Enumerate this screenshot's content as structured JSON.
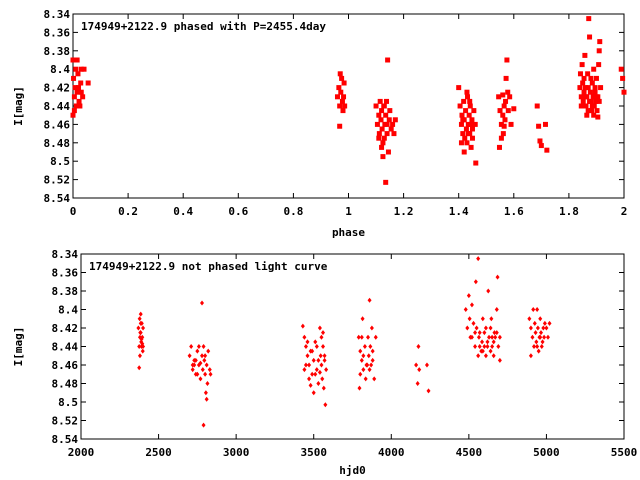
{
  "chart_data": [
    {
      "type": "scatter",
      "title": "174949+2122.9 phased with P=2455.4day",
      "xlabel": "phase",
      "ylabel": "I[mag]",
      "xlim": [
        0,
        2
      ],
      "ylim": [
        8.54,
        8.34
      ],
      "y_inverted": true,
      "xticks": [
        "0",
        "0.2",
        "0.4",
        "0.6",
        "0.8",
        "1",
        "1.2",
        "1.4",
        "1.6",
        "1.8",
        "2"
      ],
      "yticks": [
        "8.34",
        "8.36",
        "8.38",
        "8.4",
        "8.42",
        "8.44",
        "8.46",
        "8.48",
        "8.5",
        "8.52",
        "8.54"
      ],
      "marker_color": "#ff0000",
      "marker": "filled-square",
      "points": [
        [
          0.0,
          8.39
        ],
        [
          0.002,
          8.41
        ],
        [
          0.005,
          8.43
        ],
        [
          0.008,
          8.42
        ],
        [
          0.01,
          8.4
        ],
        [
          0.012,
          8.44
        ],
        [
          0.015,
          8.425
        ],
        [
          0.018,
          8.405
        ],
        [
          0.02,
          8.42
        ],
        [
          0.022,
          8.435
        ],
        [
          0.025,
          8.44
        ],
        [
          0.028,
          8.415
        ],
        [
          0.03,
          8.4
        ],
        [
          0.035,
          8.43
        ],
        [
          0.005,
          8.445
        ],
        [
          0.0,
          8.45
        ],
        [
          0.04,
          8.4
        ],
        [
          0.055,
          8.415
        ],
        [
          0.015,
          8.39
        ],
        [
          0.03,
          8.425
        ],
        [
          0.965,
          8.42
        ],
        [
          0.968,
          8.44
        ],
        [
          0.97,
          8.405
        ],
        [
          0.972,
          8.425
        ],
        [
          0.975,
          8.41
        ],
        [
          0.978,
          8.435
        ],
        [
          0.98,
          8.445
        ],
        [
          0.982,
          8.43
        ],
        [
          0.984,
          8.415
        ],
        [
          0.986,
          8.44
        ],
        [
          0.968,
          8.462
        ],
        [
          0.96,
          8.43
        ],
        [
          1.1,
          8.44
        ],
        [
          1.105,
          8.46
        ],
        [
          1.11,
          8.45
        ],
        [
          1.112,
          8.47
        ],
        [
          1.115,
          8.435
        ],
        [
          1.118,
          8.455
        ],
        [
          1.12,
          8.445
        ],
        [
          1.122,
          8.465
        ],
        [
          1.125,
          8.48
        ],
        [
          1.128,
          8.44
        ],
        [
          1.13,
          8.475
        ],
        [
          1.132,
          8.46
        ],
        [
          1.135,
          8.45
        ],
        [
          1.138,
          8.435
        ],
        [
          1.14,
          8.47
        ],
        [
          1.142,
          8.39
        ],
        [
          1.145,
          8.49
        ],
        [
          1.148,
          8.455
        ],
        [
          1.15,
          8.445
        ],
        [
          1.155,
          8.465
        ],
        [
          1.16,
          8.46
        ],
        [
          1.165,
          8.47
        ],
        [
          1.12,
          8.485
        ],
        [
          1.125,
          8.495
        ],
        [
          1.135,
          8.523
        ],
        [
          1.11,
          8.475
        ],
        [
          1.13,
          8.44
        ],
        [
          1.14,
          8.46
        ],
        [
          1.17,
          8.455
        ],
        [
          1.4,
          8.42
        ],
        [
          1.405,
          8.44
        ],
        [
          1.41,
          8.46
        ],
        [
          1.412,
          8.45
        ],
        [
          1.415,
          8.47
        ],
        [
          1.418,
          8.435
        ],
        [
          1.42,
          8.455
        ],
        [
          1.422,
          8.475
        ],
        [
          1.425,
          8.445
        ],
        [
          1.428,
          8.465
        ],
        [
          1.43,
          8.48
        ],
        [
          1.432,
          8.43
        ],
        [
          1.435,
          8.46
        ],
        [
          1.438,
          8.45
        ],
        [
          1.44,
          8.47
        ],
        [
          1.442,
          8.44
        ],
        [
          1.445,
          8.485
        ],
        [
          1.448,
          8.455
        ],
        [
          1.45,
          8.465
        ],
        [
          1.455,
          8.445
        ],
        [
          1.46,
          8.46
        ],
        [
          1.462,
          8.502
        ],
        [
          1.41,
          8.48
        ],
        [
          1.42,
          8.49
        ],
        [
          1.43,
          8.425
        ],
        [
          1.44,
          8.435
        ],
        [
          1.45,
          8.475
        ],
        [
          1.415,
          8.455
        ],
        [
          1.435,
          8.47
        ],
        [
          1.445,
          8.46
        ],
        [
          1.545,
          8.43
        ],
        [
          1.55,
          8.445
        ],
        [
          1.555,
          8.46
        ],
        [
          1.56,
          8.45
        ],
        [
          1.562,
          8.47
        ],
        [
          1.565,
          8.44
        ],
        [
          1.568,
          8.455
        ],
        [
          1.57,
          8.435
        ],
        [
          1.572,
          8.41
        ],
        [
          1.575,
          8.39
        ],
        [
          1.578,
          8.425
        ],
        [
          1.58,
          8.445
        ],
        [
          1.585,
          8.43
        ],
        [
          1.59,
          8.46
        ],
        [
          1.555,
          8.475
        ],
        [
          1.548,
          8.485
        ],
        [
          1.565,
          8.462
        ],
        [
          1.6,
          8.443
        ],
        [
          1.56,
          8.428
        ],
        [
          1.685,
          8.44
        ],
        [
          1.69,
          8.462
        ],
        [
          1.695,
          8.478
        ],
        [
          1.7,
          8.483
        ],
        [
          1.715,
          8.46
        ],
        [
          1.72,
          8.488
        ],
        [
          1.84,
          8.42
        ],
        [
          1.842,
          8.405
        ],
        [
          1.845,
          8.43
        ],
        [
          1.848,
          8.395
        ],
        [
          1.85,
          8.415
        ],
        [
          1.852,
          8.435
        ],
        [
          1.855,
          8.41
        ],
        [
          1.858,
          8.385
        ],
        [
          1.86,
          8.42
        ],
        [
          1.862,
          8.44
        ],
        [
          1.865,
          8.43
        ],
        [
          1.868,
          8.405
        ],
        [
          1.87,
          8.42
        ],
        [
          1.872,
          8.345
        ],
        [
          1.875,
          8.365
        ],
        [
          1.878,
          8.425
        ],
        [
          1.88,
          8.435
        ],
        [
          1.882,
          8.445
        ],
        [
          1.885,
          8.415
        ],
        [
          1.888,
          8.43
        ],
        [
          1.89,
          8.4
        ],
        [
          1.892,
          8.44
        ],
        [
          1.895,
          8.42
        ],
        [
          1.898,
          8.435
        ],
        [
          1.9,
          8.41
        ],
        [
          1.902,
          8.445
        ],
        [
          1.905,
          8.43
        ],
        [
          1.908,
          8.395
        ],
        [
          1.91,
          8.38
        ],
        [
          1.912,
          8.37
        ],
        [
          1.915,
          8.42
        ],
        [
          1.845,
          8.44
        ],
        [
          1.855,
          8.425
        ],
        [
          1.865,
          8.45
        ],
        [
          1.875,
          8.435
        ],
        [
          1.885,
          8.44
        ],
        [
          1.895,
          8.425
        ],
        [
          1.905,
          8.452
        ],
        [
          1.86,
          8.43
        ],
        [
          1.87,
          8.445
        ],
        [
          1.88,
          8.41
        ],
        [
          1.9,
          8.43
        ],
        [
          1.91,
          8.435
        ],
        [
          1.89,
          8.45
        ],
        [
          1.99,
          8.4
        ],
        [
          1.995,
          8.41
        ],
        [
          2.0,
          8.425
        ]
      ]
    },
    {
      "type": "scatter",
      "title": "174949+2122.9 not phased light curve",
      "xlabel": "hjd0",
      "ylabel": "I[mag]",
      "xlim": [
        2000,
        5500
      ],
      "ylim": [
        8.54,
        8.34
      ],
      "y_inverted": true,
      "xticks": [
        "2000",
        "2500",
        "3000",
        "3500",
        "4000",
        "4500",
        "5000",
        "5500"
      ],
      "yticks": [
        "8.34",
        "8.36",
        "8.38",
        "8.4",
        "8.42",
        "8.44",
        "8.46",
        "8.48",
        "8.5",
        "8.52",
        "8.54"
      ],
      "marker_color": "#ff0000",
      "marker": "filled-diamond",
      "points": [
        [
          2370,
          8.42
        ],
        [
          2375,
          8.44
        ],
        [
          2378,
          8.41
        ],
        [
          2380,
          8.43
        ],
        [
          2382,
          8.425
        ],
        [
          2385,
          8.405
        ],
        [
          2388,
          8.435
        ],
        [
          2390,
          8.44
        ],
        [
          2392,
          8.415
        ],
        [
          2395,
          8.43
        ],
        [
          2398,
          8.445
        ],
        [
          2400,
          8.42
        ],
        [
          2380,
          8.45
        ],
        [
          2375,
          8.463
        ],
        [
          2395,
          8.437
        ],
        [
          2385,
          8.425
        ],
        [
          2390,
          8.432
        ],
        [
          2400,
          8.44
        ],
        [
          2385,
          8.415
        ],
        [
          2700,
          8.45
        ],
        [
          2710,
          8.44
        ],
        [
          2720,
          8.46
        ],
        [
          2730,
          8.455
        ],
        [
          2740,
          8.47
        ],
        [
          2750,
          8.445
        ],
        [
          2760,
          8.46
        ],
        [
          2770,
          8.475
        ],
        [
          2780,
          8.45
        ],
        [
          2785,
          8.465
        ],
        [
          2790,
          8.44
        ],
        [
          2795,
          8.455
        ],
        [
          2800,
          8.47
        ],
        [
          2805,
          8.49
        ],
        [
          2810,
          8.46
        ],
        [
          2815,
          8.48
        ],
        [
          2820,
          8.445
        ],
        [
          2830,
          8.465
        ],
        [
          2835,
          8.47
        ],
        [
          2780,
          8.393
        ],
        [
          2790,
          8.525
        ],
        [
          2720,
          8.465
        ],
        [
          2740,
          8.455
        ],
        [
          2760,
          8.44
        ],
        [
          2800,
          8.45
        ],
        [
          2770,
          8.458
        ],
        [
          2810,
          8.497
        ],
        [
          2750,
          8.47
        ],
        [
          2730,
          8.46
        ],
        [
          3430,
          8.418
        ],
        [
          3440,
          8.43
        ],
        [
          3450,
          8.44
        ],
        [
          3460,
          8.45
        ],
        [
          3470,
          8.46
        ],
        [
          3480,
          8.445
        ],
        [
          3490,
          8.47
        ],
        [
          3500,
          8.455
        ],
        [
          3510,
          8.435
        ],
        [
          3520,
          8.465
        ],
        [
          3530,
          8.48
        ],
        [
          3540,
          8.42
        ],
        [
          3545,
          8.45
        ],
        [
          3550,
          8.46
        ],
        [
          3555,
          8.475
        ],
        [
          3560,
          8.44
        ],
        [
          3565,
          8.485
        ],
        [
          3570,
          8.455
        ],
        [
          3575,
          8.503
        ],
        [
          3580,
          8.465
        ],
        [
          3450,
          8.46
        ],
        [
          3470,
          8.475
        ],
        [
          3490,
          8.445
        ],
        [
          3510,
          8.47
        ],
        [
          3530,
          8.455
        ],
        [
          3550,
          8.43
        ],
        [
          3440,
          8.465
        ],
        [
          3480,
          8.482
        ],
        [
          3520,
          8.44
        ],
        [
          3560,
          8.425
        ],
        [
          3500,
          8.49
        ],
        [
          3460,
          8.435
        ],
        [
          3540,
          8.468
        ],
        [
          3570,
          8.45
        ],
        [
          3790,
          8.43
        ],
        [
          3800,
          8.445
        ],
        [
          3810,
          8.455
        ],
        [
          3815,
          8.41
        ],
        [
          3820,
          8.465
        ],
        [
          3830,
          8.44
        ],
        [
          3835,
          8.475
        ],
        [
          3840,
          8.46
        ],
        [
          3850,
          8.43
        ],
        [
          3855,
          8.45
        ],
        [
          3860,
          8.39
        ],
        [
          3865,
          8.44
        ],
        [
          3870,
          8.46
        ],
        [
          3880,
          8.455
        ],
        [
          3890,
          8.475
        ],
        [
          3900,
          8.43
        ],
        [
          3800,
          8.47
        ],
        [
          3795,
          8.485
        ],
        [
          3820,
          8.45
        ],
        [
          3845,
          8.46
        ],
        [
          3875,
          8.42
        ],
        [
          3860,
          8.465
        ],
        [
          3880,
          8.445
        ],
        [
          3810,
          8.43
        ],
        [
          4160,
          8.46
        ],
        [
          4170,
          8.48
        ],
        [
          4175,
          8.44
        ],
        [
          4180,
          8.465
        ],
        [
          4230,
          8.46
        ],
        [
          4240,
          8.488
        ],
        [
          4480,
          8.4
        ],
        [
          4490,
          8.42
        ],
        [
          4500,
          8.385
        ],
        [
          4505,
          8.41
        ],
        [
          4510,
          8.43
        ],
        [
          4520,
          8.395
        ],
        [
          4530,
          8.415
        ],
        [
          4540,
          8.44
        ],
        [
          4545,
          8.37
        ],
        [
          4550,
          8.42
        ],
        [
          4560,
          8.345
        ],
        [
          4565,
          8.43
        ],
        [
          4570,
          8.425
        ],
        [
          4580,
          8.445
        ],
        [
          4585,
          8.435
        ],
        [
          4590,
          8.41
        ],
        [
          4600,
          8.44
        ],
        [
          4610,
          8.42
        ],
        [
          4620,
          8.435
        ],
        [
          4625,
          8.38
        ],
        [
          4630,
          8.43
        ],
        [
          4640,
          8.445
        ],
        [
          4645,
          8.41
        ],
        [
          4650,
          8.44
        ],
        [
          4660,
          8.45
        ],
        [
          4665,
          8.425
        ],
        [
          4670,
          8.43
        ],
        [
          4680,
          8.4
        ],
        [
          4685,
          8.365
        ],
        [
          4690,
          8.44
        ],
        [
          4700,
          8.455
        ],
        [
          4520,
          8.43
        ],
        [
          4540,
          8.425
        ],
        [
          4560,
          8.45
        ],
        [
          4600,
          8.425
        ],
        [
          4620,
          8.44
        ],
        [
          4640,
          8.42
        ],
        [
          4660,
          8.435
        ],
        [
          4680,
          8.425
        ],
        [
          4700,
          8.43
        ],
        [
          4570,
          8.44
        ],
        [
          4590,
          8.445
        ],
        [
          4610,
          8.45
        ],
        [
          4650,
          8.43
        ],
        [
          4890,
          8.41
        ],
        [
          4900,
          8.42
        ],
        [
          4910,
          8.43
        ],
        [
          4915,
          8.4
        ],
        [
          4920,
          8.44
        ],
        [
          4925,
          8.415
        ],
        [
          4930,
          8.425
        ],
        [
          4935,
          8.435
        ],
        [
          4940,
          8.4
        ],
        [
          4945,
          8.42
        ],
        [
          4950,
          8.445
        ],
        [
          4955,
          8.43
        ],
        [
          4960,
          8.41
        ],
        [
          4965,
          8.425
        ],
        [
          4970,
          8.44
        ],
        [
          4975,
          8.435
        ],
        [
          4980,
          8.42
        ],
        [
          4985,
          8.43
        ],
        [
          4990,
          8.415
        ],
        [
          5000,
          8.42
        ],
        [
          5010,
          8.43
        ],
        [
          5020,
          8.415
        ],
        [
          4900,
          8.45
        ],
        [
          4940,
          8.44
        ],
        [
          4960,
          8.43
        ]
      ]
    }
  ]
}
